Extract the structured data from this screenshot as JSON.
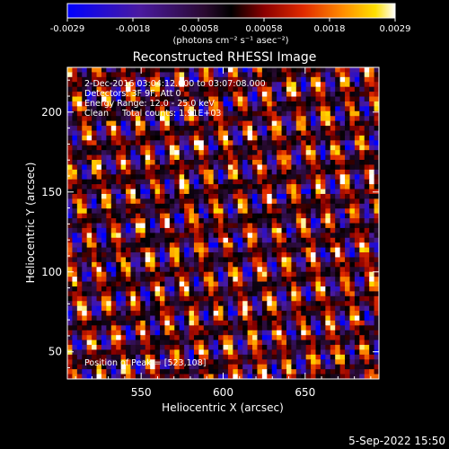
{
  "chart_data": {
    "type": "heatmap",
    "title": "Reconstructed RHESSI Image",
    "xlabel": "Heliocentric X (arcsec)",
    "ylabel": "Heliocentric Y (arcsec)",
    "xlim": [
      505,
      695
    ],
    "ylim": [
      33,
      228
    ],
    "x_ticks": [
      550,
      600,
      650
    ],
    "y_ticks": [
      50,
      100,
      150,
      200
    ],
    "colorbar": {
      "range": [
        -0.0029,
        0.0029
      ],
      "ticks": [
        "-0.0029",
        "-0.0018",
        "-0.00058",
        "0.00058",
        "0.0018",
        "0.0029"
      ],
      "unit_label": "(photons cm⁻² s⁻¹ asec⁻²)"
    },
    "annotations": [
      "2-Dec-2016 03:04:12.000 to 03:07:08.000",
      "Detectors: 3F 9F, Att 0",
      "Energy Range: 12.0 - 25.0 keV",
      "Clean     Total counts: 1.91E+03",
      "Position of Peak = [523,108]"
    ],
    "peak_position": [
      523,
      108
    ],
    "grid": false,
    "color_table": [
      "#0000ff",
      "#3a0a8a",
      "#5a1b7a",
      "#000000",
      "#7a0000",
      "#d82000",
      "#ff7a00",
      "#ffd000",
      "#ffffff"
    ]
  },
  "footer": {
    "timestamp": "5-Sep-2022 15:50"
  }
}
